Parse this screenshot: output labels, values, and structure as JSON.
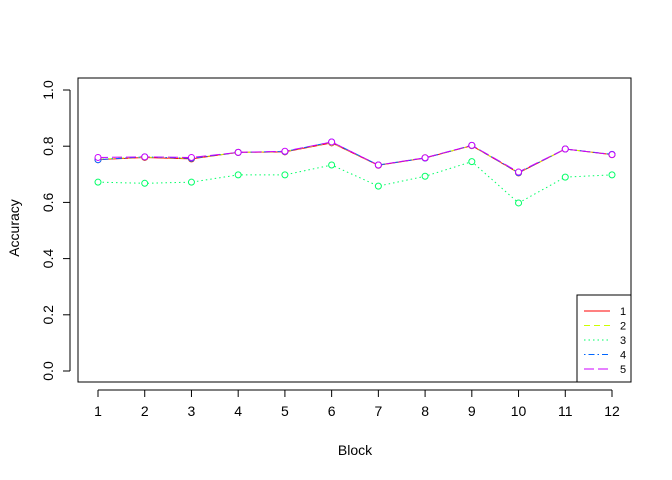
{
  "chart_data": {
    "type": "line",
    "title": "",
    "xlabel": "Block",
    "ylabel": "Accuracy",
    "x": [
      1,
      2,
      3,
      4,
      5,
      6,
      7,
      8,
      9,
      10,
      11,
      12
    ],
    "x_tick_labels": [
      "1",
      "2",
      "3",
      "4",
      "5",
      "6",
      "7",
      "8",
      "9",
      "10",
      "11",
      "12"
    ],
    "xlim": [
      1,
      12
    ],
    "ylim": [
      0,
      1
    ],
    "y_ticks": [
      0.0,
      0.2,
      0.4,
      0.6,
      0.8,
      1.0
    ],
    "y_tick_labels": [
      "0.0",
      "0.2",
      "0.4",
      "0.6",
      "0.8",
      "1.0"
    ],
    "grid": false,
    "legend_position": "bottom-right",
    "markers": "open-circle",
    "series": [
      {
        "name": "1",
        "color": "#FF0000",
        "dash": "solid",
        "values": [
          0.752,
          0.76,
          0.755,
          0.778,
          0.78,
          0.812,
          0.732,
          0.758,
          0.802,
          0.705,
          0.79,
          0.77
        ]
      },
      {
        "name": "2",
        "color": "#CCFF00",
        "dash": "dashed",
        "values": [
          0.754,
          0.761,
          0.757,
          0.778,
          0.781,
          0.813,
          0.733,
          0.759,
          0.802,
          0.706,
          0.79,
          0.77
        ]
      },
      {
        "name": "3",
        "color": "#00FF66",
        "dash": "dotted",
        "values": [
          0.672,
          0.668,
          0.672,
          0.698,
          0.698,
          0.733,
          0.658,
          0.693,
          0.745,
          0.598,
          0.69,
          0.698
        ]
      },
      {
        "name": "4",
        "color": "#0066FF",
        "dash": "dotdash",
        "values": [
          0.752,
          0.762,
          0.757,
          0.778,
          0.781,
          0.815,
          0.733,
          0.758,
          0.803,
          0.706,
          0.79,
          0.771
        ]
      },
      {
        "name": "5",
        "color": "#CC00FF",
        "dash": "longdash",
        "values": [
          0.76,
          0.762,
          0.76,
          0.778,
          0.782,
          0.815,
          0.733,
          0.759,
          0.803,
          0.708,
          0.79,
          0.77
        ]
      }
    ]
  }
}
